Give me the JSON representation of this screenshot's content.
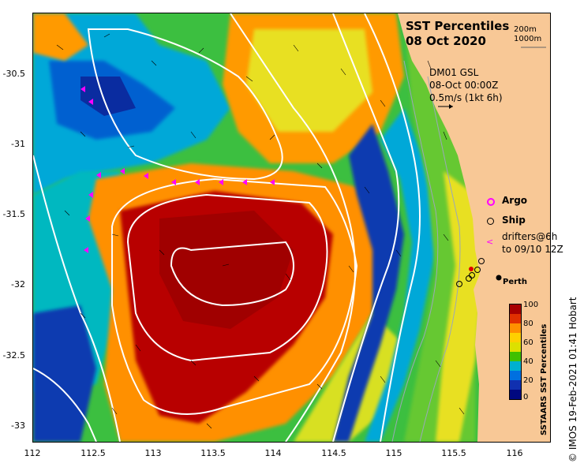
{
  "title": {
    "line1": "SST Percentiles",
    "line2": "08 Oct 2020"
  },
  "depth_contours": {
    "label1": "200m",
    "label2": "1000m"
  },
  "currents_info": {
    "line1": "DM01 GSL",
    "line2": "08-Oct 00:00Z",
    "line3": "0.5m/s (1kt 6h)"
  },
  "legend": {
    "argo": "Argo",
    "ship": "Ship",
    "drifters_line1": "drifters@6h",
    "drifters_line2": "to 09/10 12Z"
  },
  "city": "Perth",
  "colorbar": {
    "title": "SSTAARS SST Percentiles",
    "ticks": [
      "100",
      "80",
      "60",
      "40",
      "20",
      "0"
    ],
    "colors": [
      "#a80000",
      "#e03000",
      "#ff9000",
      "#ffd000",
      "#dde000",
      "#40c000",
      "#00b0d0",
      "#0070e0",
      "#1030b0",
      "#000880"
    ]
  },
  "credit": "© IMOS 19-Feb-2021 01:41 Hobart",
  "axes": {
    "x_ticks": [
      "112",
      "112.5",
      "113",
      "113.5",
      "114",
      "114.5",
      "115",
      "115.5",
      "116"
    ],
    "y_ticks": [
      "-30.5",
      "-31",
      "-31.5",
      "-32",
      "-32.5",
      "-33"
    ]
  },
  "colors": {
    "land": "#f8c896",
    "ocean_warm": "#b00000",
    "ocean_cool": "#1040c0",
    "drifter": "#ff00ff"
  }
}
